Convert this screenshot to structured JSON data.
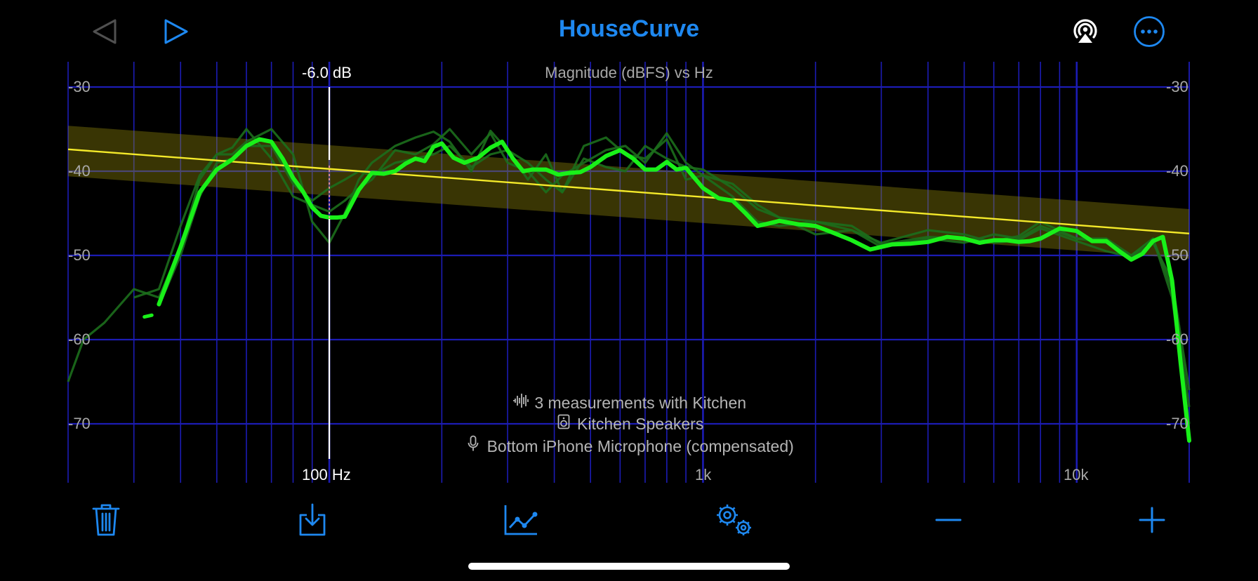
{
  "app": {
    "title": "HouseCurve"
  },
  "toolbar_top": {
    "back_icon": "triangle-left-icon",
    "play_icon": "play-icon",
    "airplay_icon": "airplay-audio-icon",
    "more_icon": "ellipsis-circle-icon"
  },
  "chart_data": {
    "type": "line",
    "title": "Magnitude (dBFS) vs Hz",
    "x_scale": "log",
    "xlim": [
      20,
      20000
    ],
    "ylim": [
      -77,
      -27
    ],
    "y_ticks": [
      -30,
      -40,
      -50,
      -60,
      -70
    ],
    "y_tick_labels": [
      "-30",
      "-40",
      "-50",
      "-60",
      "-70"
    ],
    "x_tick_labels": [
      {
        "value": 100,
        "label": "100 Hz"
      },
      {
        "value": 1000,
        "label": "1k"
      },
      {
        "value": 10000,
        "label": "10k"
      }
    ],
    "cursor": {
      "x": 100,
      "label_top": "-6.0 dB",
      "label_bottom": "100 Hz"
    },
    "target_curve": {
      "color": "#f4ea2a",
      "x": [
        20,
        20000
      ],
      "y": [
        -37.4,
        -47.4
      ],
      "band_upper": [
        -34.6,
        -44.5
      ],
      "band_lower": [
        -40.6,
        -50.4
      ]
    },
    "series": [
      {
        "role": "average",
        "color": "#19f019",
        "x": [
          35,
          40,
          45,
          50,
          55,
          60,
          65,
          70,
          75,
          80,
          85,
          90,
          95,
          100,
          105,
          110,
          120,
          130,
          140,
          150,
          160,
          170,
          180,
          190,
          200,
          215,
          230,
          250,
          270,
          290,
          310,
          330,
          350,
          380,
          410,
          440,
          470,
          500,
          550,
          600,
          650,
          700,
          750,
          800,
          850,
          900,
          1000,
          1100,
          1200,
          1300,
          1400,
          1500,
          1600,
          1800,
          2000,
          2200,
          2500,
          2800,
          3200,
          3600,
          4000,
          4500,
          5000,
          5500,
          6000,
          6500,
          7000,
          7500,
          8000,
          9000,
          10000,
          11000,
          12000,
          13000,
          14000,
          15000,
          16000,
          17000,
          18000,
          19000,
          20000
        ],
        "y": [
          -55.8,
          -49,
          -42.5,
          -39.8,
          -38.6,
          -37,
          -36.2,
          -36.5,
          -38.5,
          -40.8,
          -42.4,
          -44.3,
          -45.3,
          -45.5,
          -45.5,
          -45.4,
          -42.2,
          -40.2,
          -40.3,
          -40,
          -39.1,
          -38.5,
          -38.8,
          -37.1,
          -36.7,
          -38.4,
          -39,
          -38.4,
          -37.2,
          -36.5,
          -38.5,
          -40,
          -39.8,
          -39.8,
          -40.4,
          -40.2,
          -40.1,
          -39.5,
          -38.2,
          -37.5,
          -38.5,
          -39.8,
          -39.8,
          -38.9,
          -39.8,
          -39.6,
          -42,
          -43.2,
          -43.5,
          -45,
          -46.5,
          -46.2,
          -45.9,
          -46.3,
          -46.5,
          -47.2,
          -48.2,
          -49.3,
          -48.7,
          -48.6,
          -48.4,
          -47.8,
          -48,
          -48.5,
          -48.2,
          -48.2,
          -48.4,
          -48.3,
          -48,
          -46.8,
          -47.1,
          -48.3,
          -48.3,
          -49.5,
          -50.5,
          -49.8,
          -48.3,
          -47.8,
          -53,
          -63,
          -72
        ]
      },
      {
        "role": "measurement",
        "color": "#1c6e1c",
        "x": [
          20,
          22,
          25,
          30,
          35,
          40,
          45,
          50,
          55,
          60,
          70,
          80,
          90,
          100,
          110,
          120,
          130,
          150,
          170,
          190,
          210,
          240,
          270,
          300,
          340,
          380,
          420,
          480,
          550,
          620,
          700,
          800,
          900,
          1000,
          1200,
          1400,
          1600,
          2000,
          2500,
          3000,
          4000,
          5000,
          6000,
          7000,
          8000,
          10000,
          12000,
          14000,
          16000,
          18000,
          20000
        ],
        "y": [
          -65,
          -60,
          -58,
          -54,
          -55,
          -49,
          -41,
          -38,
          -38,
          -36.5,
          -35,
          -38,
          -46,
          -48.5,
          -45,
          -41,
          -39,
          -37,
          -36,
          -35.3,
          -36.5,
          -40,
          -35.2,
          -37.5,
          -41,
          -38,
          -42.5,
          -37,
          -36,
          -38,
          -38.5,
          -36.2,
          -41,
          -40.5,
          -43,
          -46,
          -46.5,
          -46,
          -47,
          -49,
          -48,
          -48.5,
          -47.5,
          -48,
          -46.5,
          -48,
          -48,
          -50,
          -48,
          -55,
          -70
        ]
      },
      {
        "role": "measurement",
        "color": "#1c6e1c",
        "x": [
          30,
          35,
          40,
          45,
          50,
          55,
          60,
          70,
          80,
          90,
          100,
          110,
          120,
          130,
          150,
          170,
          190,
          210,
          240,
          270,
          300,
          340,
          380,
          420,
          480,
          550,
          620,
          700,
          800,
          900,
          1000,
          1200,
          1400,
          1600,
          2000,
          2500,
          3000,
          4000,
          5000,
          6000,
          7000,
          8000,
          10000,
          12000,
          14000,
          16000,
          18000,
          20000
        ],
        "y": [
          -55,
          -54,
          -46.5,
          -40.5,
          -38,
          -37.2,
          -35,
          -38.5,
          -43,
          -44,
          -44.8,
          -43.5,
          -42,
          -41,
          -37.5,
          -38,
          -36.8,
          -35,
          -38,
          -35.5,
          -39,
          -40,
          -42.5,
          -40.5,
          -39,
          -37.5,
          -37,
          -39,
          -35.5,
          -39,
          -40.5,
          -41.5,
          -44,
          -45.5,
          -46,
          -46.5,
          -48.7,
          -47.8,
          -48,
          -48.3,
          -47.7,
          -46,
          -48,
          -48.5,
          -50,
          -48,
          -54,
          -68
        ]
      },
      {
        "role": "measurement",
        "color": "#1c6e1c",
        "x": [
          35,
          40,
          45,
          50,
          55,
          60,
          70,
          80,
          90,
          100,
          110,
          120,
          130,
          150,
          170,
          190,
          210,
          240,
          270,
          300,
          340,
          380,
          420,
          480,
          550,
          620,
          700,
          800,
          900,
          1000,
          1200,
          1400,
          1600,
          2000,
          2500,
          3000,
          4000,
          5000,
          6000,
          7000,
          8000,
          10000,
          12000,
          14000,
          16000,
          18000,
          20000
        ],
        "y": [
          -56,
          -50,
          -43,
          -39,
          -38.5,
          -37,
          -37,
          -41.5,
          -43.5,
          -42,
          -41,
          -40,
          -40.5,
          -39,
          -38.5,
          -38,
          -37,
          -39.5,
          -38,
          -37.5,
          -39,
          -41,
          -42.5,
          -38.5,
          -39.5,
          -40,
          -37,
          -38.5,
          -39.5,
          -39.8,
          -42,
          -44.5,
          -45.5,
          -47.5,
          -47,
          -48.5,
          -47,
          -47.5,
          -48.5,
          -48.2,
          -46.8,
          -48.3,
          -49.5,
          -50.2,
          -48.5,
          -53,
          -66
        ]
      }
    ],
    "stray_segment": {
      "color": "#19f019",
      "x": [
        32,
        33.5
      ],
      "y": [
        -57.3,
        -57.1
      ]
    },
    "info": {
      "measurements": "3 measurements with Kitchen",
      "speakers": "Kitchen Speakers",
      "microphone": "Bottom iPhone Microphone (compensated)"
    },
    "grid": true,
    "colors": {
      "background": "#000000",
      "grid": "#1c1cb4",
      "axis_text": "#a8a8a8"
    }
  },
  "toolbar_bottom": {
    "delete_icon": "trash-icon",
    "export_icon": "tray-arrow-down-icon",
    "chart_icon": "line-chart-icon",
    "settings_icon": "gears-icon",
    "zoom_out_icon": "minus-icon",
    "zoom_in_icon": "plus-icon"
  },
  "colors": {
    "accent": "#1e88f0"
  }
}
